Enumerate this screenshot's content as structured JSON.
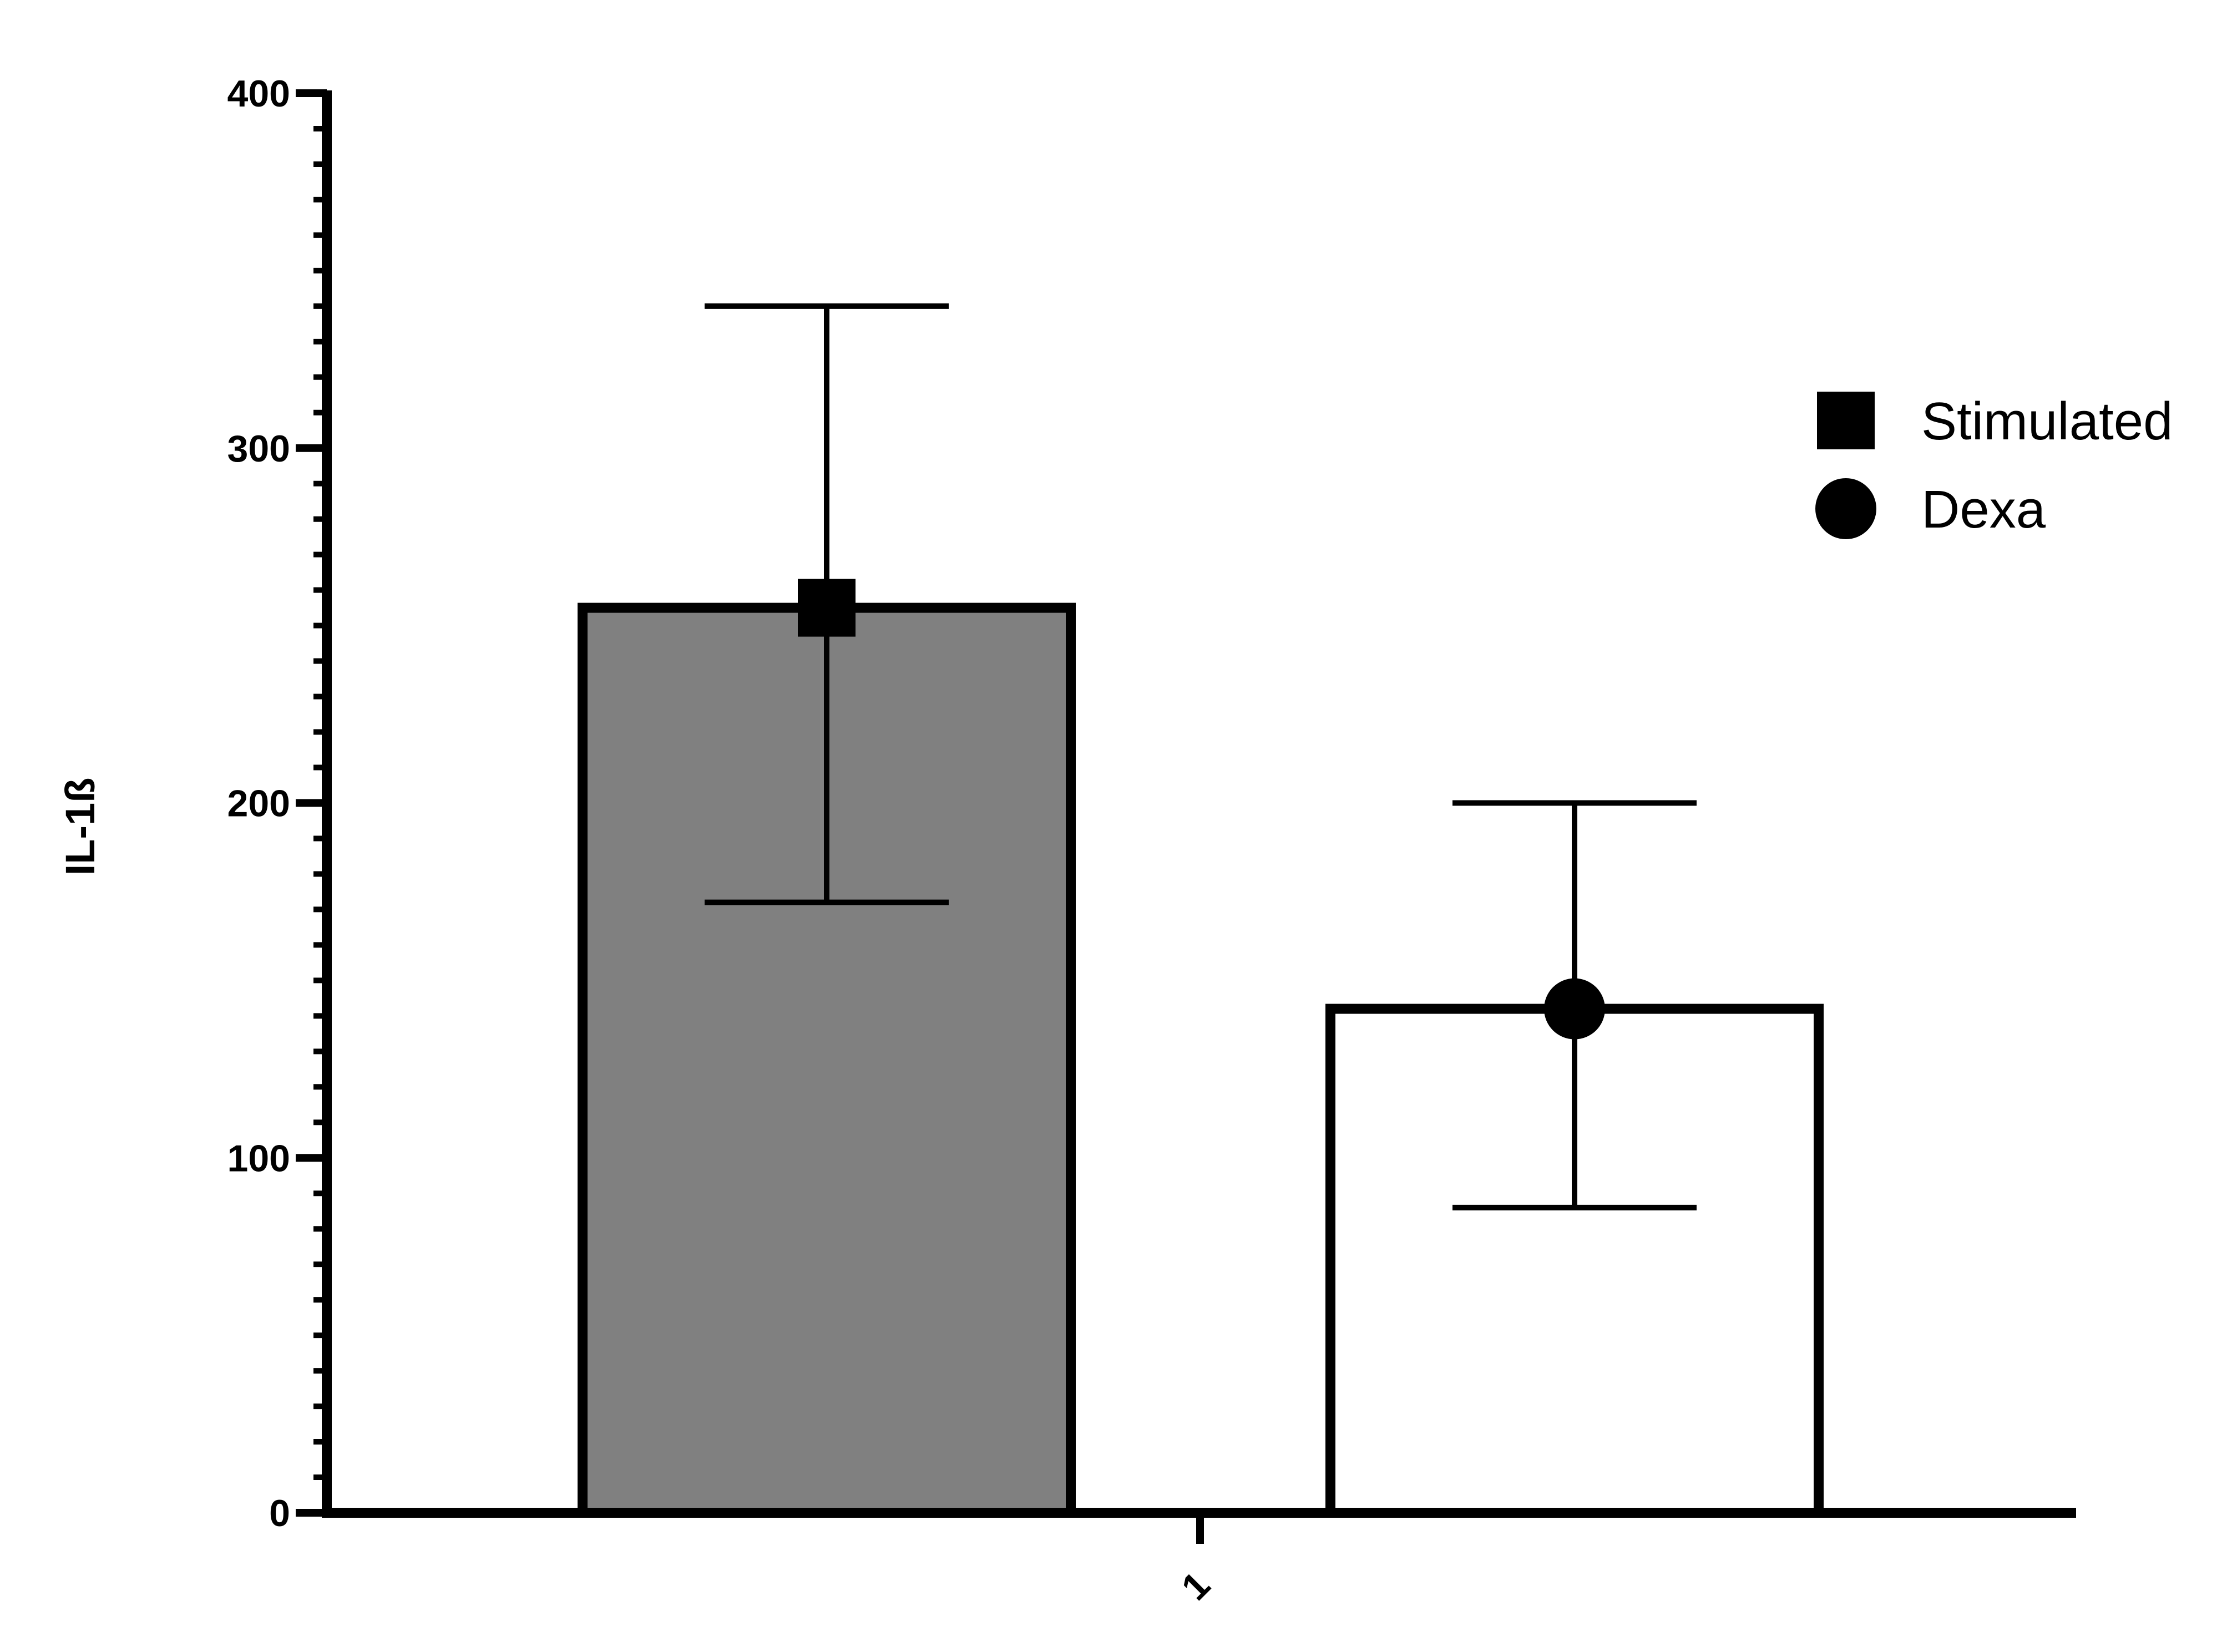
{
  "chart_data": {
    "type": "bar",
    "categories": [
      "1"
    ],
    "ylabel": "IL-1ß",
    "xlabel": "",
    "ylim": [
      0,
      400
    ],
    "y_ticks": [
      0,
      100,
      200,
      300,
      400
    ],
    "y_minor_step": 10,
    "legend_position": "top-right",
    "grid": false,
    "series": [
      {
        "name": "Stimulated",
        "value": 255,
        "error_low": 172,
        "error_high": 340,
        "fill": "#808080",
        "marker": "square"
      },
      {
        "name": "Dexa",
        "value": 142,
        "error_low": 86,
        "error_high": 200,
        "fill": "#ffffff",
        "marker": "circle"
      }
    ]
  }
}
